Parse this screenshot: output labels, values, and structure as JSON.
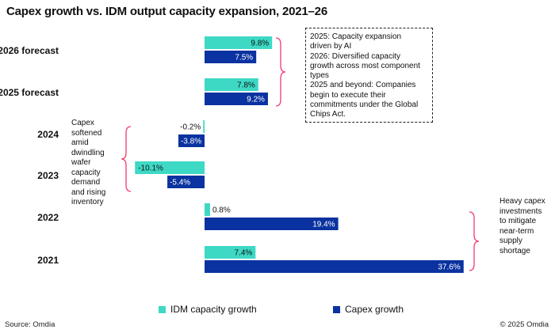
{
  "title": "Capex growth vs. IDM output capacity expansion, 2021–26",
  "colors": {
    "idm": "#3dd9c5",
    "capex": "#0a32a0",
    "bracket": "#f23a6c"
  },
  "chart_data": {
    "type": "bar",
    "orientation": "horizontal",
    "categories": [
      "2026 forecast",
      "2025 forecast",
      "2024",
      "2023",
      "2022",
      "2021"
    ],
    "series": [
      {
        "name": "IDM capacity growth",
        "values": [
          9.8,
          7.8,
          -0.2,
          -10.1,
          0.8,
          7.4
        ],
        "labels": [
          "9.8%",
          "7.8%",
          "-0.2%",
          "-10.1%",
          "0.8%",
          "7.4%"
        ]
      },
      {
        "name": "Capex growth",
        "values": [
          7.5,
          9.2,
          -3.8,
          -5.4,
          19.4,
          37.6
        ],
        "labels": [
          "7.5%",
          "9.2%",
          "-3.8%",
          "-5.4%",
          "19.4%",
          "37.6%"
        ]
      }
    ],
    "xlim": [
      -11,
      38
    ],
    "legend": "bottom",
    "grid": false
  },
  "annotations": {
    "forecast_note": [
      "2025: Capacity expansion",
      "driven by AI",
      "2026: Diversified capacity",
      "growth across most component",
      "types",
      "2025 and beyond: Companies",
      "begin to execute their",
      "commitments under the Global",
      "Chips Act."
    ],
    "softened_note": [
      "Capex",
      "softened",
      "amid",
      "dwindling",
      "wafer",
      "capacity",
      "demand",
      "and rising",
      "inventory"
    ],
    "heavy_note": [
      "Heavy capex",
      "investments",
      "to mitigate",
      "near-term",
      "supply",
      "shortage"
    ]
  },
  "legend": {
    "idm_label": "IDM capacity growth",
    "capex_label": "Capex growth"
  },
  "footer": {
    "source": "Source: Omdia",
    "copyright": "© 2025 Omdia"
  }
}
